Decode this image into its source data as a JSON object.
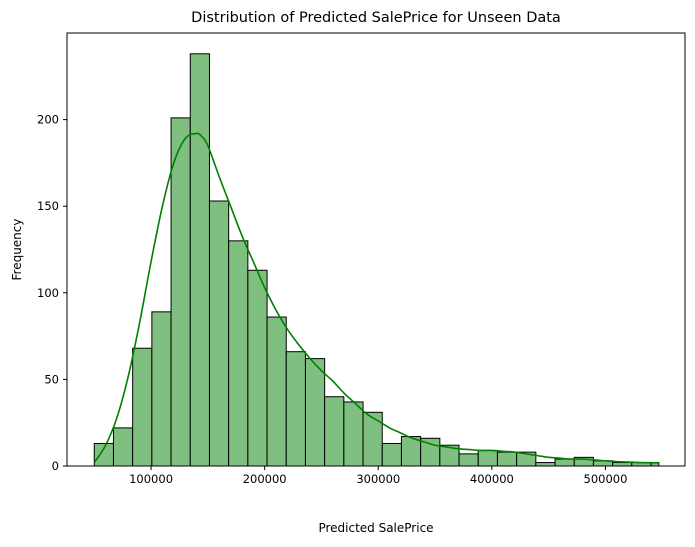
{
  "chart_data": {
    "type": "histogram",
    "title": "Distribution of Predicted SalePrice for Unseen Data",
    "xlabel": "Predicted SalePrice",
    "ylabel": "Frequency",
    "xlim": [
      26000,
      570000
    ],
    "ylim": [
      0,
      250
    ],
    "xticks": [
      100000,
      200000,
      300000,
      400000,
      500000
    ],
    "yticks": [
      0,
      50,
      100,
      150,
      200
    ],
    "bar_color": "#7fbf7f",
    "bar_edge_color": "#000000",
    "kde_color": "#008000",
    "grid": false,
    "bins": [
      {
        "x0": 50000,
        "x1": 66900,
        "count": 13
      },
      {
        "x0": 66900,
        "x1": 83800,
        "count": 22
      },
      {
        "x0": 83800,
        "x1": 100700,
        "count": 68
      },
      {
        "x0": 100700,
        "x1": 117600,
        "count": 89
      },
      {
        "x0": 117600,
        "x1": 134500,
        "count": 201
      },
      {
        "x0": 134500,
        "x1": 151400,
        "count": 238
      },
      {
        "x0": 151400,
        "x1": 168300,
        "count": 153
      },
      {
        "x0": 168300,
        "x1": 185200,
        "count": 130
      },
      {
        "x0": 185200,
        "x1": 202100,
        "count": 113
      },
      {
        "x0": 202100,
        "x1": 219000,
        "count": 86
      },
      {
        "x0": 219000,
        "x1": 235900,
        "count": 66
      },
      {
        "x0": 235900,
        "x1": 252800,
        "count": 62
      },
      {
        "x0": 252800,
        "x1": 269700,
        "count": 40
      },
      {
        "x0": 269700,
        "x1": 286600,
        "count": 37
      },
      {
        "x0": 286600,
        "x1": 303500,
        "count": 31
      },
      {
        "x0": 303500,
        "x1": 320400,
        "count": 13
      },
      {
        "x0": 320400,
        "x1": 337300,
        "count": 17
      },
      {
        "x0": 337300,
        "x1": 354200,
        "count": 16
      },
      {
        "x0": 354200,
        "x1": 371100,
        "count": 12
      },
      {
        "x0": 371100,
        "x1": 388000,
        "count": 7
      },
      {
        "x0": 388000,
        "x1": 404900,
        "count": 9
      },
      {
        "x0": 404900,
        "x1": 421800,
        "count": 8
      },
      {
        "x0": 421800,
        "x1": 438700,
        "count": 8
      },
      {
        "x0": 438700,
        "x1": 455600,
        "count": 2
      },
      {
        "x0": 455600,
        "x1": 472500,
        "count": 4
      },
      {
        "x0": 472500,
        "x1": 489400,
        "count": 5
      },
      {
        "x0": 489400,
        "x1": 506300,
        "count": 3
      },
      {
        "x0": 506300,
        "x1": 523200,
        "count": 2
      },
      {
        "x0": 523200,
        "x1": 540100,
        "count": 2
      },
      {
        "x0": 540100,
        "x1": 547000,
        "count": 2
      }
    ],
    "kde": {
      "x": [
        50000,
        60000,
        70000,
        80000,
        90000,
        100000,
        110000,
        120000,
        130000,
        140000,
        145000,
        150000,
        160000,
        170000,
        180000,
        190000,
        200000,
        210000,
        220000,
        230000,
        240000,
        250000,
        260000,
        270000,
        280000,
        290000,
        300000,
        310000,
        320000,
        330000,
        340000,
        350000,
        360000,
        370000,
        380000,
        390000,
        400000,
        410000,
        420000,
        430000,
        440000,
        450000,
        460000,
        470000,
        480000,
        490000,
        500000,
        510000,
        520000,
        530000,
        547000
      ],
      "y": [
        2,
        12,
        28,
        52,
        83,
        118,
        150,
        175,
        189,
        192,
        190,
        185,
        167,
        150,
        133,
        118,
        103,
        90,
        79,
        70,
        62,
        55,
        49,
        42,
        36,
        30,
        26,
        22,
        19,
        16,
        14,
        12,
        11,
        10,
        9.5,
        9,
        9,
        8.5,
        8,
        7,
        6,
        5,
        4.5,
        4,
        4,
        3.5,
        3,
        2.5,
        2.3,
        2,
        1.8
      ]
    }
  }
}
